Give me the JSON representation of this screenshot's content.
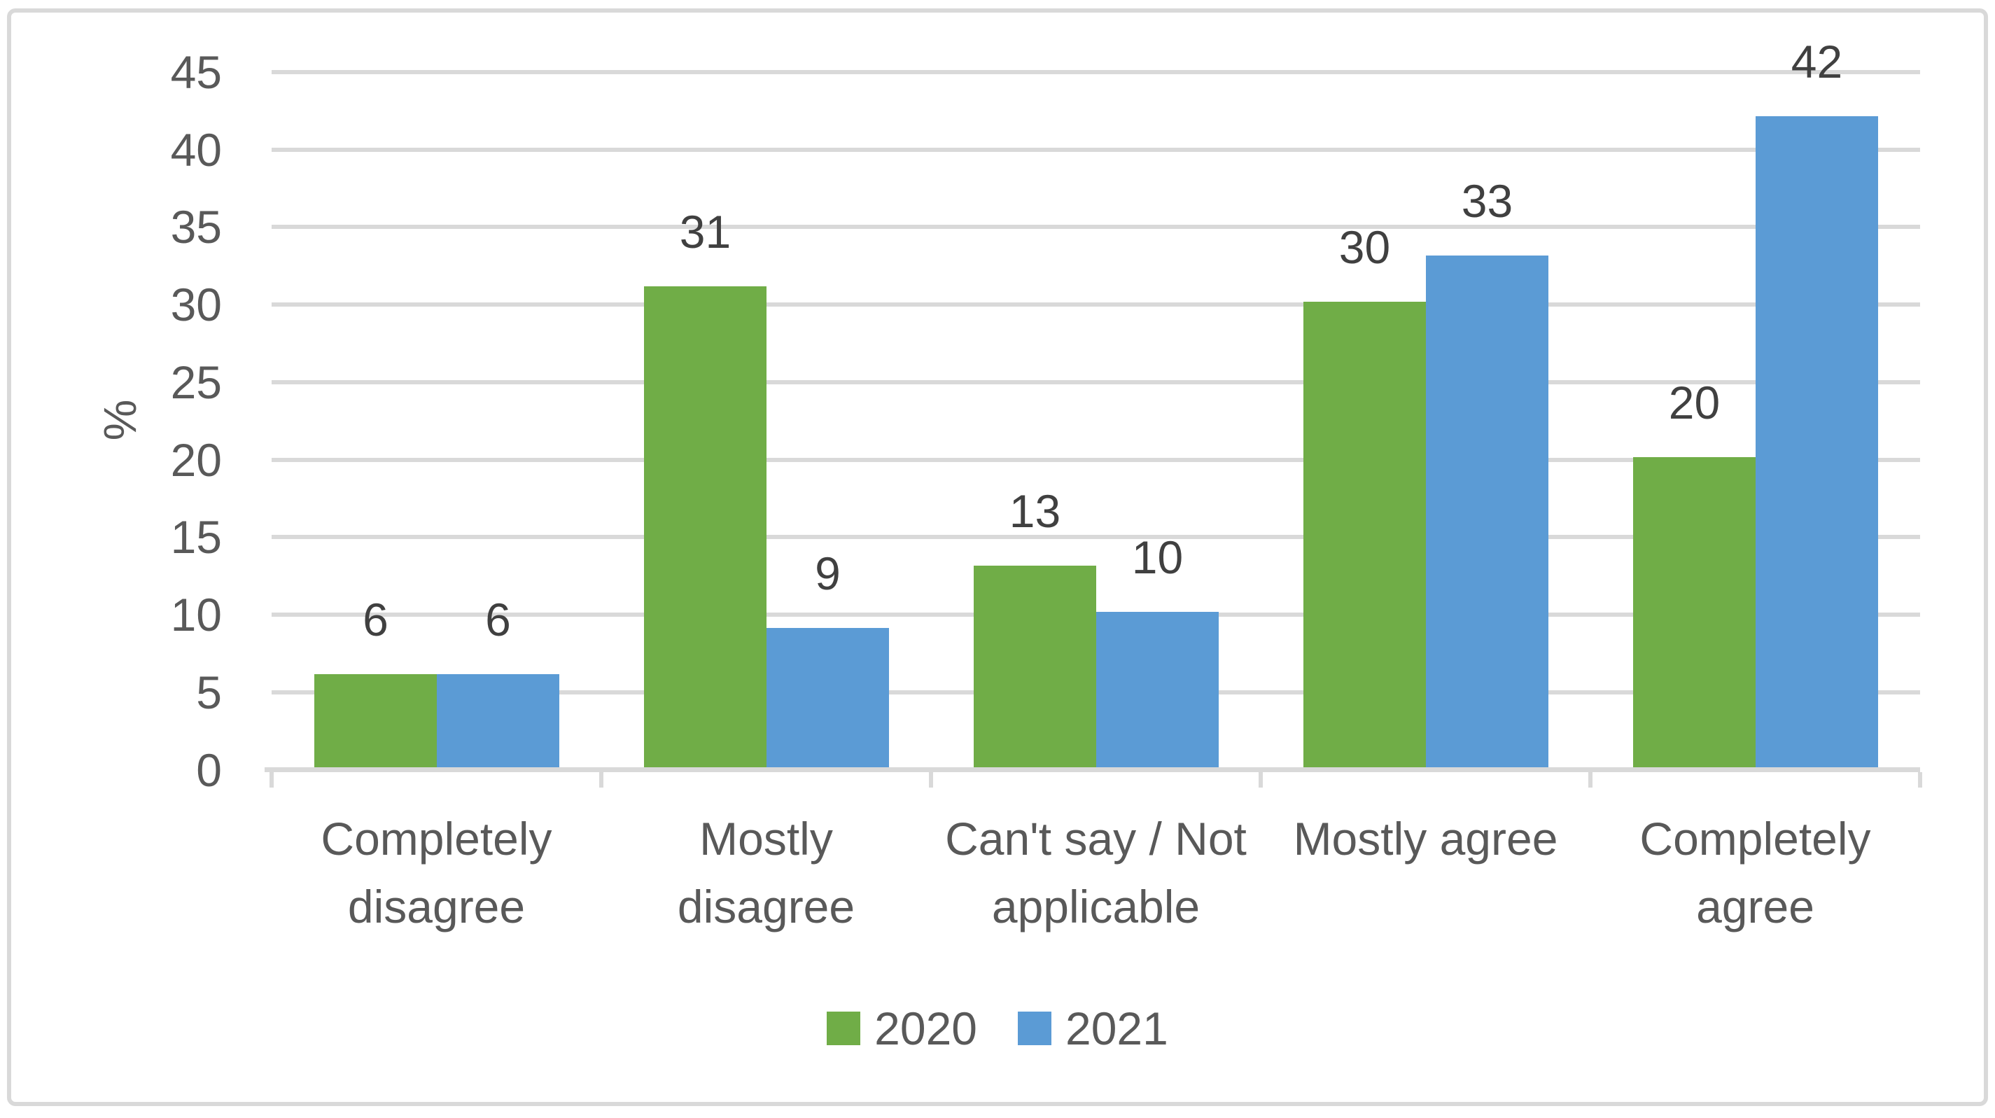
{
  "chart_data": {
    "type": "bar",
    "title": "",
    "xlabel": "",
    "ylabel": "%",
    "ylim": [
      0,
      45
    ],
    "ytick_step": 5,
    "yticks": [
      0,
      5,
      10,
      15,
      20,
      25,
      30,
      35,
      40,
      45
    ],
    "grid": true,
    "legend_position": "bottom",
    "categories": [
      "Completely disagree",
      "Mostly disagree",
      "Can't say / Not applicable",
      "Mostly agree",
      "Completely agree"
    ],
    "category_label_lines": [
      [
        "Completely",
        "disagree"
      ],
      [
        "Mostly",
        "disagree"
      ],
      [
        "Can't say / Not",
        "applicable"
      ],
      [
        "Mostly agree"
      ],
      [
        "Completely",
        "agree"
      ]
    ],
    "series": [
      {
        "name": "2020",
        "color": "#70AD47",
        "values": [
          6,
          31,
          13,
          30,
          20
        ]
      },
      {
        "name": "2021",
        "color": "#5B9BD5",
        "values": [
          6,
          9,
          10,
          33,
          42
        ]
      }
    ],
    "data_labels_visible": true
  },
  "colors": {
    "background": "#FFFFFF",
    "border": "#D9D9D9",
    "gridline": "#D9D9D9",
    "axis_line": "#D9D9D9",
    "tick_label": "#595959",
    "data_label": "#404040",
    "legend_text": "#595959",
    "series_2020": "#70AD47",
    "series_2021": "#5B9BD5"
  }
}
